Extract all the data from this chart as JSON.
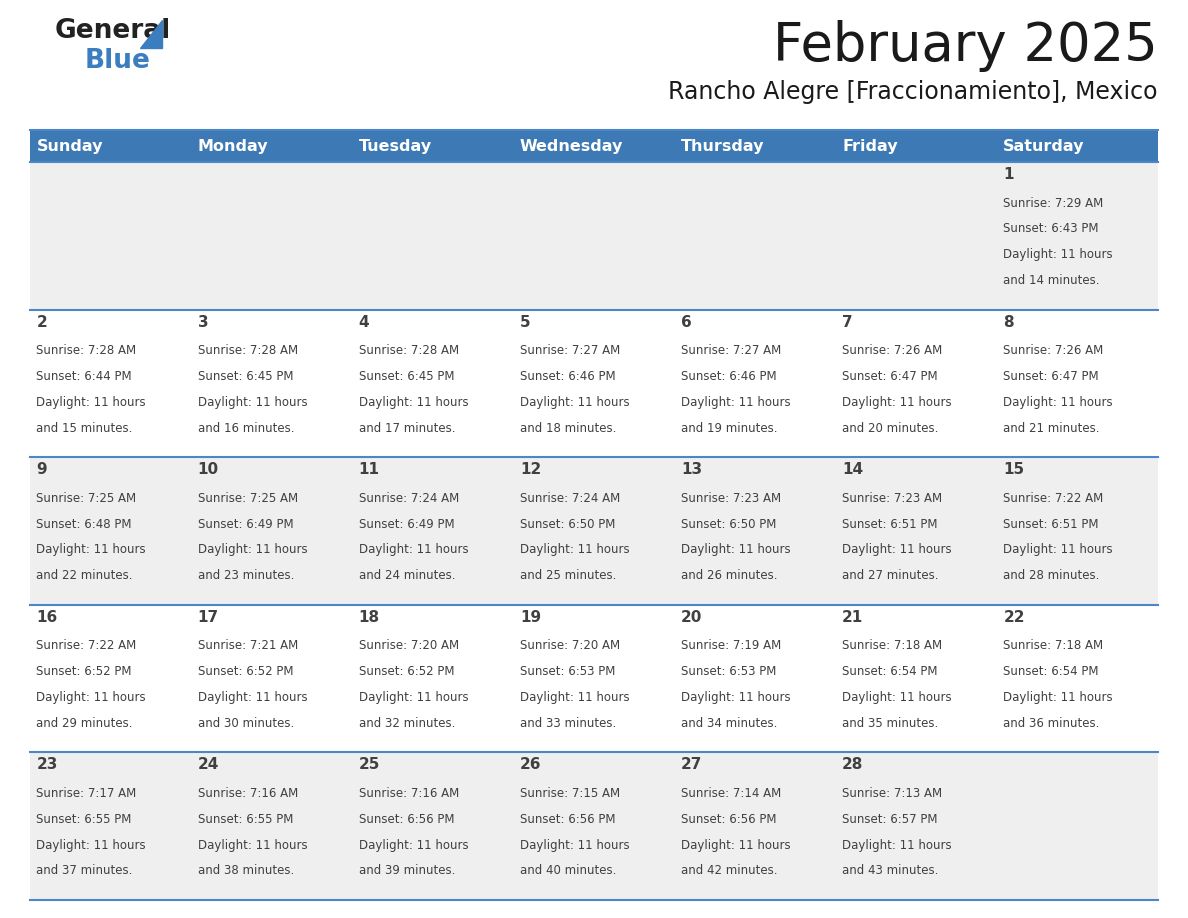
{
  "title": "February 2025",
  "subtitle": "Rancho Alegre [Fraccionamiento], Mexico",
  "header_bg": "#3d7ab5",
  "header_text": "#ffffff",
  "days_of_week": [
    "Sunday",
    "Monday",
    "Tuesday",
    "Wednesday",
    "Thursday",
    "Friday",
    "Saturday"
  ],
  "row_bg_light": "#efefef",
  "row_bg_white": "#ffffff",
  "row_separator_color": "#4a86c8",
  "text_color": "#404040",
  "logo_color_general": "#222222",
  "logo_color_blue": "#3a7ebf",
  "calendar_data": [
    [
      {
        "day": "",
        "sunrise": "",
        "sunset": "",
        "daylight_h": "",
        "daylight_m": ""
      },
      {
        "day": "",
        "sunrise": "",
        "sunset": "",
        "daylight_h": "",
        "daylight_m": ""
      },
      {
        "day": "",
        "sunrise": "",
        "sunset": "",
        "daylight_h": "",
        "daylight_m": ""
      },
      {
        "day": "",
        "sunrise": "",
        "sunset": "",
        "daylight_h": "",
        "daylight_m": ""
      },
      {
        "day": "",
        "sunrise": "",
        "sunset": "",
        "daylight_h": "",
        "daylight_m": ""
      },
      {
        "day": "",
        "sunrise": "",
        "sunset": "",
        "daylight_h": "",
        "daylight_m": ""
      },
      {
        "day": "1",
        "sunrise": "7:29 AM",
        "sunset": "6:43 PM",
        "daylight_h": "11 hours",
        "daylight_m": "and 14 minutes."
      }
    ],
    [
      {
        "day": "2",
        "sunrise": "7:28 AM",
        "sunset": "6:44 PM",
        "daylight_h": "11 hours",
        "daylight_m": "and 15 minutes."
      },
      {
        "day": "3",
        "sunrise": "7:28 AM",
        "sunset": "6:45 PM",
        "daylight_h": "11 hours",
        "daylight_m": "and 16 minutes."
      },
      {
        "day": "4",
        "sunrise": "7:28 AM",
        "sunset": "6:45 PM",
        "daylight_h": "11 hours",
        "daylight_m": "and 17 minutes."
      },
      {
        "day": "5",
        "sunrise": "7:27 AM",
        "sunset": "6:46 PM",
        "daylight_h": "11 hours",
        "daylight_m": "and 18 minutes."
      },
      {
        "day": "6",
        "sunrise": "7:27 AM",
        "sunset": "6:46 PM",
        "daylight_h": "11 hours",
        "daylight_m": "and 19 minutes."
      },
      {
        "day": "7",
        "sunrise": "7:26 AM",
        "sunset": "6:47 PM",
        "daylight_h": "11 hours",
        "daylight_m": "and 20 minutes."
      },
      {
        "day": "8",
        "sunrise": "7:26 AM",
        "sunset": "6:47 PM",
        "daylight_h": "11 hours",
        "daylight_m": "and 21 minutes."
      }
    ],
    [
      {
        "day": "9",
        "sunrise": "7:25 AM",
        "sunset": "6:48 PM",
        "daylight_h": "11 hours",
        "daylight_m": "and 22 minutes."
      },
      {
        "day": "10",
        "sunrise": "7:25 AM",
        "sunset": "6:49 PM",
        "daylight_h": "11 hours",
        "daylight_m": "and 23 minutes."
      },
      {
        "day": "11",
        "sunrise": "7:24 AM",
        "sunset": "6:49 PM",
        "daylight_h": "11 hours",
        "daylight_m": "and 24 minutes."
      },
      {
        "day": "12",
        "sunrise": "7:24 AM",
        "sunset": "6:50 PM",
        "daylight_h": "11 hours",
        "daylight_m": "and 25 minutes."
      },
      {
        "day": "13",
        "sunrise": "7:23 AM",
        "sunset": "6:50 PM",
        "daylight_h": "11 hours",
        "daylight_m": "and 26 minutes."
      },
      {
        "day": "14",
        "sunrise": "7:23 AM",
        "sunset": "6:51 PM",
        "daylight_h": "11 hours",
        "daylight_m": "and 27 minutes."
      },
      {
        "day": "15",
        "sunrise": "7:22 AM",
        "sunset": "6:51 PM",
        "daylight_h": "11 hours",
        "daylight_m": "and 28 minutes."
      }
    ],
    [
      {
        "day": "16",
        "sunrise": "7:22 AM",
        "sunset": "6:52 PM",
        "daylight_h": "11 hours",
        "daylight_m": "and 29 minutes."
      },
      {
        "day": "17",
        "sunrise": "7:21 AM",
        "sunset": "6:52 PM",
        "daylight_h": "11 hours",
        "daylight_m": "and 30 minutes."
      },
      {
        "day": "18",
        "sunrise": "7:20 AM",
        "sunset": "6:52 PM",
        "daylight_h": "11 hours",
        "daylight_m": "and 32 minutes."
      },
      {
        "day": "19",
        "sunrise": "7:20 AM",
        "sunset": "6:53 PM",
        "daylight_h": "11 hours",
        "daylight_m": "and 33 minutes."
      },
      {
        "day": "20",
        "sunrise": "7:19 AM",
        "sunset": "6:53 PM",
        "daylight_h": "11 hours",
        "daylight_m": "and 34 minutes."
      },
      {
        "day": "21",
        "sunrise": "7:18 AM",
        "sunset": "6:54 PM",
        "daylight_h": "11 hours",
        "daylight_m": "and 35 minutes."
      },
      {
        "day": "22",
        "sunrise": "7:18 AM",
        "sunset": "6:54 PM",
        "daylight_h": "11 hours",
        "daylight_m": "and 36 minutes."
      }
    ],
    [
      {
        "day": "23",
        "sunrise": "7:17 AM",
        "sunset": "6:55 PM",
        "daylight_h": "11 hours",
        "daylight_m": "and 37 minutes."
      },
      {
        "day": "24",
        "sunrise": "7:16 AM",
        "sunset": "6:55 PM",
        "daylight_h": "11 hours",
        "daylight_m": "and 38 minutes."
      },
      {
        "day": "25",
        "sunrise": "7:16 AM",
        "sunset": "6:56 PM",
        "daylight_h": "11 hours",
        "daylight_m": "and 39 minutes."
      },
      {
        "day": "26",
        "sunrise": "7:15 AM",
        "sunset": "6:56 PM",
        "daylight_h": "11 hours",
        "daylight_m": "and 40 minutes."
      },
      {
        "day": "27",
        "sunrise": "7:14 AM",
        "sunset": "6:56 PM",
        "daylight_h": "11 hours",
        "daylight_m": "and 42 minutes."
      },
      {
        "day": "28",
        "sunrise": "7:13 AM",
        "sunset": "6:57 PM",
        "daylight_h": "11 hours",
        "daylight_m": "and 43 minutes."
      },
      {
        "day": "",
        "sunrise": "",
        "sunset": "",
        "daylight_h": "",
        "daylight_m": ""
      }
    ]
  ]
}
